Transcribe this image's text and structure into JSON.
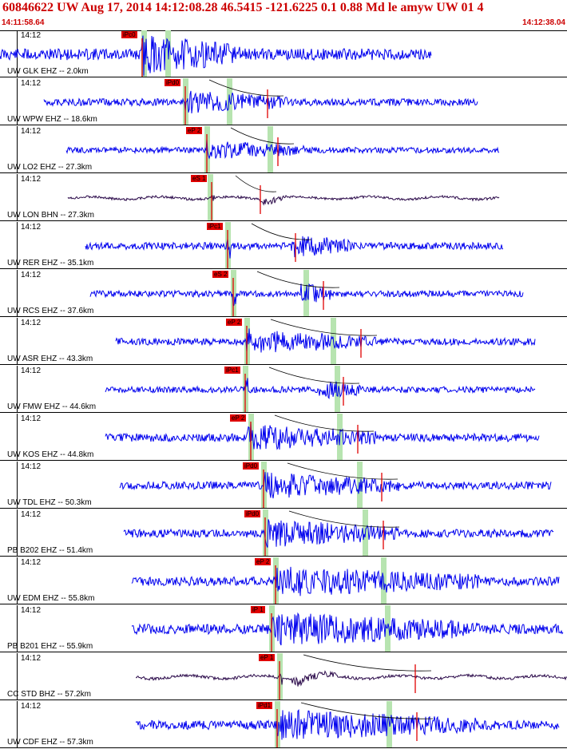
{
  "header": {
    "title": "60846622 UW Aug 17, 2014 14:12:08.28   46.5415 -121.6225  0.1 0.88 Md le amyw UW 01   4",
    "start_time": "14:11:58.64",
    "end_time": "14:12:38.04"
  },
  "colors": {
    "trace": "#0000ee",
    "broadband_trace": "#2b0a4a",
    "pick": "#e00000",
    "pick_window": "#b7e4b0",
    "title": "#cc0000"
  },
  "panels": [
    {
      "tick": "14:12",
      "station": "UW GLK EHZ -- 2.0km",
      "pick_label": "iPc0",
      "trace": "short"
    },
    {
      "tick": "14:12",
      "station": "UW WPW EHZ -- 18.6km",
      "pick_label": "iPd0",
      "trace": "short"
    },
    {
      "tick": "14:12",
      "station": "UW LO2 EHZ -- 27.3km",
      "pick_label": "eP 2",
      "trace": "short"
    },
    {
      "tick": "14:12",
      "station": "UW LON BHN -- 27.3km",
      "pick_label": "eS 1",
      "trace": "broadband"
    },
    {
      "tick": "14:12",
      "station": "UW RER EHZ -- 35.1km",
      "pick_label": "iPc1",
      "trace": "short"
    },
    {
      "tick": "14:12",
      "station": "UW RCS EHZ -- 37.6km",
      "pick_label": "eS 2",
      "trace": "short"
    },
    {
      "tick": "14:12",
      "station": "UW ASR EHZ -- 43.3km",
      "pick_label": "eP 2",
      "trace": "short"
    },
    {
      "tick": "14:12",
      "station": "UW FMW EHZ -- 44.6km",
      "pick_label": "iPc1",
      "trace": "short"
    },
    {
      "tick": "14:12",
      "station": "UW KOS EHZ -- 44.8km",
      "pick_label": "eP 2",
      "trace": "short"
    },
    {
      "tick": "14:12",
      "station": "UW TDL EHZ -- 50.3km",
      "pick_label": "iPd0",
      "trace": "short"
    },
    {
      "tick": "14:12",
      "station": "PB B202 EHZ -- 51.4km",
      "pick_label": "iPd0",
      "trace": "short"
    },
    {
      "tick": "14:12",
      "station": "UW EDM EHZ -- 55.8km",
      "pick_label": "eP 2",
      "trace": "short"
    },
    {
      "tick": "14:12",
      "station": "PB B201 EHZ -- 55.9km",
      "pick_label": "iP 1",
      "trace": "short"
    },
    {
      "tick": "14:12",
      "station": "CC STD BHZ -- 57.2km",
      "pick_label": "eP 1",
      "trace": "broadband"
    },
    {
      "tick": "14:12",
      "station": "UW CDF EHZ -- 57.3km",
      "pick_label": "iPd1",
      "trace": "short"
    }
  ]
}
